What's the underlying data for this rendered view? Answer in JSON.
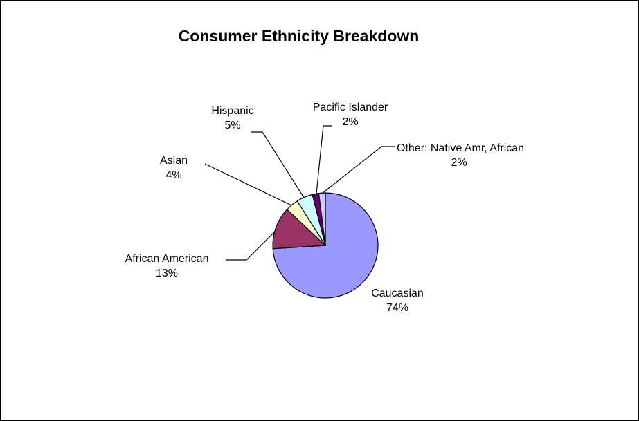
{
  "chart_data": {
    "type": "pie",
    "title": "Consumer Ethnicity Breakdown",
    "slices": [
      {
        "name": "Caucasian",
        "value": 74,
        "label": "74%",
        "color": "#9999ff"
      },
      {
        "name": "African American",
        "value": 13,
        "label": "13%",
        "color": "#993366"
      },
      {
        "name": "Asian",
        "value": 4,
        "label": "4%",
        "color": "#ffffcc"
      },
      {
        "name": "Hispanic",
        "value": 5,
        "label": "5%",
        "color": "#ccffff"
      },
      {
        "name": "Pacific Islander",
        "value": 2,
        "label": "2%",
        "color": "#660066"
      },
      {
        "name": "Other: Native Amr, African",
        "value": 2,
        "label": "2%",
        "color": "#ccccff"
      }
    ],
    "start_angle_deg": 0,
    "direction": "clockwise",
    "legend": "none",
    "label_lines": true
  }
}
